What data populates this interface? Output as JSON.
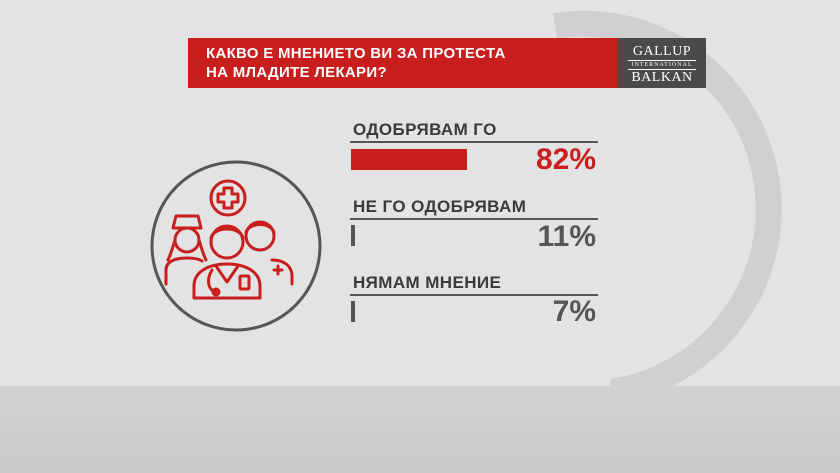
{
  "title": {
    "line1": "КАКВО Е МНЕНИЕТО ВИ ЗА ПРОТЕСТА",
    "line2": "НА МЛАДИТЕ ЛЕКАРИ?"
  },
  "logo": {
    "top": "GALLUP",
    "middle": "INTERNATIONAL",
    "bottom": "BALKAN"
  },
  "icon": "medical-staff-icon",
  "colors": {
    "accent": "#c81e1e",
    "secondary": "#555555",
    "logo_bg": "#4a4a4a",
    "background": "#e3e3e3",
    "text": "#3a3a3a"
  },
  "chart_data": {
    "type": "bar",
    "title": "КАКВО Е МНЕНИЕТО ВИ ЗА ПРОТЕСТА НА МЛАДИТЕ ЛЕКАРИ?",
    "categories": [
      "ОДОБРЯВАМ ГО",
      "НЕ ГО ОДОБРЯВАМ",
      "НЯМАМ МНЕНИЕ"
    ],
    "values": [
      82,
      11,
      7
    ],
    "labels": [
      "82%",
      "11%",
      "7%"
    ],
    "unit": "%",
    "ylim": [
      0,
      100
    ],
    "orientation": "horizontal",
    "grid": false,
    "legend": "none"
  }
}
